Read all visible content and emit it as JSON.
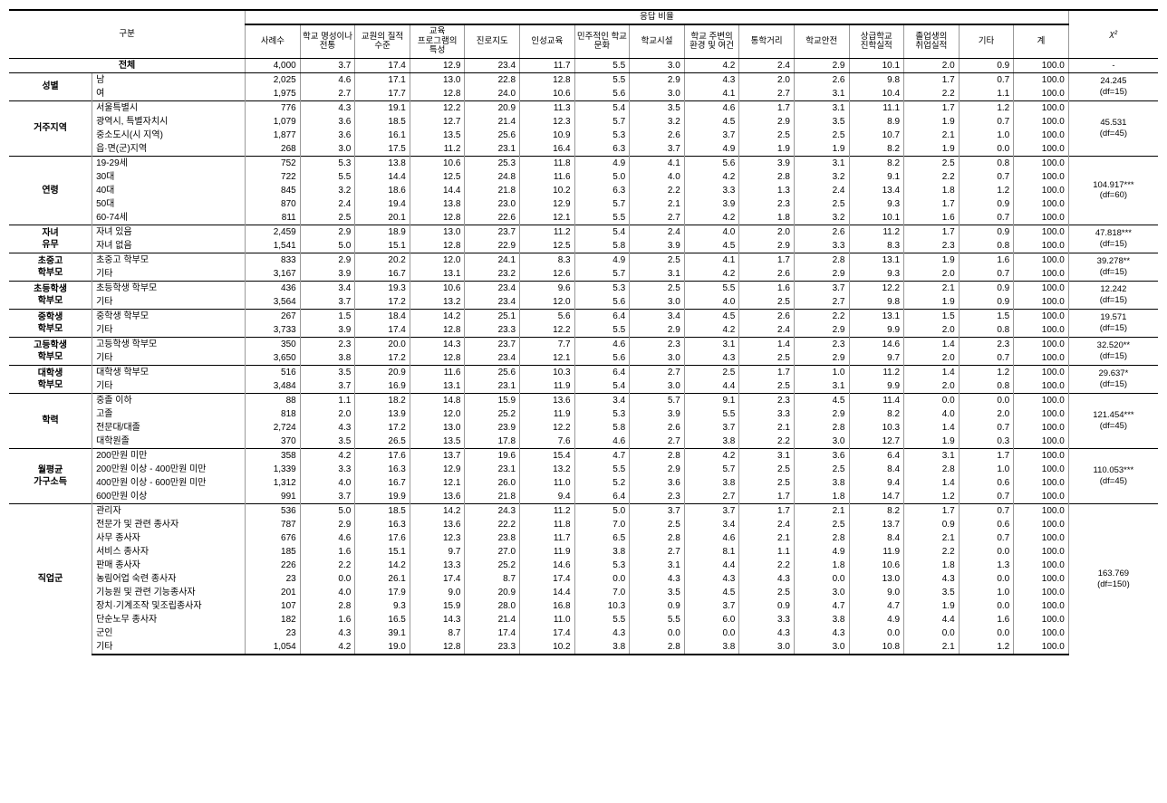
{
  "headers": {
    "cat": "구분",
    "ratio_group": "응답 비율",
    "cols": [
      "사례수",
      "학교 명성이나 전통",
      "교원의 질적 수준",
      "교육 프로그램의 특성",
      "진로지도",
      "인성교육",
      "민주적인 학교 문화",
      "학교시설",
      "학교 주변의 환경 및 여건",
      "통학거리",
      "학교안전",
      "상급학교 진학실적",
      "졸업생의 취업실적",
      "기타",
      "계"
    ],
    "chi": "χ²"
  },
  "total": {
    "label": "전체",
    "cells": [
      "4,000",
      "3.7",
      "17.4",
      "12.9",
      "23.4",
      "11.7",
      "5.5",
      "3.0",
      "4.2",
      "2.4",
      "2.9",
      "10.1",
      "2.0",
      "0.9",
      "100.0"
    ],
    "chi": "-"
  },
  "groups": [
    {
      "name": "성별",
      "chi": "24.245\n(df=15)",
      "rows": [
        {
          "label": "남",
          "cells": [
            "2,025",
            "4.6",
            "17.1",
            "13.0",
            "22.8",
            "12.8",
            "5.5",
            "2.9",
            "4.3",
            "2.0",
            "2.6",
            "9.8",
            "1.7",
            "0.7",
            "100.0"
          ]
        },
        {
          "label": "여",
          "cells": [
            "1,975",
            "2.7",
            "17.7",
            "12.8",
            "24.0",
            "10.6",
            "5.6",
            "3.0",
            "4.1",
            "2.7",
            "3.1",
            "10.4",
            "2.2",
            "1.1",
            "100.0"
          ]
        }
      ]
    },
    {
      "name": "거주지역",
      "chi": "45.531\n(df=45)",
      "rows": [
        {
          "label": "서울특별시",
          "cells": [
            "776",
            "4.3",
            "19.1",
            "12.2",
            "20.9",
            "11.3",
            "5.4",
            "3.5",
            "4.6",
            "1.7",
            "3.1",
            "11.1",
            "1.7",
            "1.2",
            "100.0"
          ]
        },
        {
          "label": "광역시, 특별자치시",
          "cells": [
            "1,079",
            "3.6",
            "18.5",
            "12.7",
            "21.4",
            "12.3",
            "5.7",
            "3.2",
            "4.5",
            "2.9",
            "3.5",
            "8.9",
            "1.9",
            "0.7",
            "100.0"
          ]
        },
        {
          "label": "중소도시(시 지역)",
          "cells": [
            "1,877",
            "3.6",
            "16.1",
            "13.5",
            "25.6",
            "10.9",
            "5.3",
            "2.6",
            "3.7",
            "2.5",
            "2.5",
            "10.7",
            "2.1",
            "1.0",
            "100.0"
          ]
        },
        {
          "label": "읍·면(군)지역",
          "cells": [
            "268",
            "3.0",
            "17.5",
            "11.2",
            "23.1",
            "16.4",
            "6.3",
            "3.7",
            "4.9",
            "1.9",
            "1.9",
            "8.2",
            "1.9",
            "0.0",
            "100.0"
          ]
        }
      ]
    },
    {
      "name": "연령",
      "chi": "104.917***\n(df=60)",
      "rows": [
        {
          "label": "19-29세",
          "cells": [
            "752",
            "5.3",
            "13.8",
            "10.6",
            "25.3",
            "11.8",
            "4.9",
            "4.1",
            "5.6",
            "3.9",
            "3.1",
            "8.2",
            "2.5",
            "0.8",
            "100.0"
          ]
        },
        {
          "label": "30대",
          "cells": [
            "722",
            "5.5",
            "14.4",
            "12.5",
            "24.8",
            "11.6",
            "5.0",
            "4.0",
            "4.2",
            "2.8",
            "3.2",
            "9.1",
            "2.2",
            "0.7",
            "100.0"
          ]
        },
        {
          "label": "40대",
          "cells": [
            "845",
            "3.2",
            "18.6",
            "14.4",
            "21.8",
            "10.2",
            "6.3",
            "2.2",
            "3.3",
            "1.3",
            "2.4",
            "13.4",
            "1.8",
            "1.2",
            "100.0"
          ]
        },
        {
          "label": "50대",
          "cells": [
            "870",
            "2.4",
            "19.4",
            "13.8",
            "23.0",
            "12.9",
            "5.7",
            "2.1",
            "3.9",
            "2.3",
            "2.5",
            "9.3",
            "1.7",
            "0.9",
            "100.0"
          ]
        },
        {
          "label": "60-74세",
          "cells": [
            "811",
            "2.5",
            "20.1",
            "12.8",
            "22.6",
            "12.1",
            "5.5",
            "2.7",
            "4.2",
            "1.8",
            "3.2",
            "10.1",
            "1.6",
            "0.7",
            "100.0"
          ]
        }
      ]
    },
    {
      "name": "자녀\n유무",
      "chi": "47.818***\n(df=15)",
      "rows": [
        {
          "label": "자녀 있음",
          "cells": [
            "2,459",
            "2.9",
            "18.9",
            "13.0",
            "23.7",
            "11.2",
            "5.4",
            "2.4",
            "4.0",
            "2.0",
            "2.6",
            "11.2",
            "1.7",
            "0.9",
            "100.0"
          ]
        },
        {
          "label": "자녀 없음",
          "cells": [
            "1,541",
            "5.0",
            "15.1",
            "12.8",
            "22.9",
            "12.5",
            "5.8",
            "3.9",
            "4.5",
            "2.9",
            "3.3",
            "8.3",
            "2.3",
            "0.8",
            "100.0"
          ]
        }
      ]
    },
    {
      "name": "초중고\n학부모",
      "chi": "39.278**\n(df=15)",
      "rows": [
        {
          "label": "초중고 학부모",
          "cells": [
            "833",
            "2.9",
            "20.2",
            "12.0",
            "24.1",
            "8.3",
            "4.9",
            "2.5",
            "4.1",
            "1.7",
            "2.8",
            "13.1",
            "1.9",
            "1.6",
            "100.0"
          ]
        },
        {
          "label": "기타",
          "cells": [
            "3,167",
            "3.9",
            "16.7",
            "13.1",
            "23.2",
            "12.6",
            "5.7",
            "3.1",
            "4.2",
            "2.6",
            "2.9",
            "9.3",
            "2.0",
            "0.7",
            "100.0"
          ]
        }
      ]
    },
    {
      "name": "초등학생\n학부모",
      "chi": "12.242\n(df=15)",
      "rows": [
        {
          "label": "초등학생 학부모",
          "cells": [
            "436",
            "3.4",
            "19.3",
            "10.6",
            "23.4",
            "9.6",
            "5.3",
            "2.5",
            "5.5",
            "1.6",
            "3.7",
            "12.2",
            "2.1",
            "0.9",
            "100.0"
          ]
        },
        {
          "label": "기타",
          "cells": [
            "3,564",
            "3.7",
            "17.2",
            "13.2",
            "23.4",
            "12.0",
            "5.6",
            "3.0",
            "4.0",
            "2.5",
            "2.7",
            "9.8",
            "1.9",
            "0.9",
            "100.0"
          ]
        }
      ]
    },
    {
      "name": "중학생\n학부모",
      "chi": "19.571\n(df=15)",
      "rows": [
        {
          "label": "중학생 학부모",
          "cells": [
            "267",
            "1.5",
            "18.4",
            "14.2",
            "25.1",
            "5.6",
            "6.4",
            "3.4",
            "4.5",
            "2.6",
            "2.2",
            "13.1",
            "1.5",
            "1.5",
            "100.0"
          ]
        },
        {
          "label": "기타",
          "cells": [
            "3,733",
            "3.9",
            "17.4",
            "12.8",
            "23.3",
            "12.2",
            "5.5",
            "2.9",
            "4.2",
            "2.4",
            "2.9",
            "9.9",
            "2.0",
            "0.8",
            "100.0"
          ]
        }
      ]
    },
    {
      "name": "고등학생\n학부모",
      "chi": "32.520**\n(df=15)",
      "rows": [
        {
          "label": "고등학생 학부모",
          "cells": [
            "350",
            "2.3",
            "20.0",
            "14.3",
            "23.7",
            "7.7",
            "4.6",
            "2.3",
            "3.1",
            "1.4",
            "2.3",
            "14.6",
            "1.4",
            "2.3",
            "100.0"
          ]
        },
        {
          "label": "기타",
          "cells": [
            "3,650",
            "3.8",
            "17.2",
            "12.8",
            "23.4",
            "12.1",
            "5.6",
            "3.0",
            "4.3",
            "2.5",
            "2.9",
            "9.7",
            "2.0",
            "0.7",
            "100.0"
          ]
        }
      ]
    },
    {
      "name": "대학생\n학부모",
      "chi": "29.637*\n(df=15)",
      "rows": [
        {
          "label": "대학생 학부모",
          "cells": [
            "516",
            "3.5",
            "20.9",
            "11.6",
            "25.6",
            "10.3",
            "6.4",
            "2.7",
            "2.5",
            "1.7",
            "1.0",
            "11.2",
            "1.4",
            "1.2",
            "100.0"
          ]
        },
        {
          "label": "기타",
          "cells": [
            "3,484",
            "3.7",
            "16.9",
            "13.1",
            "23.1",
            "11.9",
            "5.4",
            "3.0",
            "4.4",
            "2.5",
            "3.1",
            "9.9",
            "2.0",
            "0.8",
            "100.0"
          ]
        }
      ]
    },
    {
      "name": "학력",
      "chi": "121.454***\n(df=45)",
      "rows": [
        {
          "label": "중졸 이하",
          "cells": [
            "88",
            "1.1",
            "18.2",
            "14.8",
            "15.9",
            "13.6",
            "3.4",
            "5.7",
            "9.1",
            "2.3",
            "4.5",
            "11.4",
            "0.0",
            "0.0",
            "100.0"
          ]
        },
        {
          "label": "고졸",
          "cells": [
            "818",
            "2.0",
            "13.9",
            "12.0",
            "25.2",
            "11.9",
            "5.3",
            "3.9",
            "5.5",
            "3.3",
            "2.9",
            "8.2",
            "4.0",
            "2.0",
            "100.0"
          ]
        },
        {
          "label": "전문대/대졸",
          "cells": [
            "2,724",
            "4.3",
            "17.2",
            "13.0",
            "23.9",
            "12.2",
            "5.8",
            "2.6",
            "3.7",
            "2.1",
            "2.8",
            "10.3",
            "1.4",
            "0.7",
            "100.0"
          ]
        },
        {
          "label": "대학원졸",
          "cells": [
            "370",
            "3.5",
            "26.5",
            "13.5",
            "17.8",
            "7.6",
            "4.6",
            "2.7",
            "3.8",
            "2.2",
            "3.0",
            "12.7",
            "1.9",
            "0.3",
            "100.0"
          ]
        }
      ]
    },
    {
      "name": "월평균\n가구소득",
      "chi": "110.053***\n(df=45)",
      "rows": [
        {
          "label": "200만원 미만",
          "cells": [
            "358",
            "4.2",
            "17.6",
            "13.7",
            "19.6",
            "15.4",
            "4.7",
            "2.8",
            "4.2",
            "3.1",
            "3.6",
            "6.4",
            "3.1",
            "1.7",
            "100.0"
          ]
        },
        {
          "label": "200만원 이상 - 400만원 미만",
          "cells": [
            "1,339",
            "3.3",
            "16.3",
            "12.9",
            "23.1",
            "13.2",
            "5.5",
            "2.9",
            "5.7",
            "2.5",
            "2.5",
            "8.4",
            "2.8",
            "1.0",
            "100.0"
          ]
        },
        {
          "label": "400만원 이상 - 600만원 미만",
          "cells": [
            "1,312",
            "4.0",
            "16.7",
            "12.1",
            "26.0",
            "11.0",
            "5.2",
            "3.6",
            "3.8",
            "2.5",
            "3.8",
            "9.4",
            "1.4",
            "0.6",
            "100.0"
          ]
        },
        {
          "label": "600만원 이상",
          "cells": [
            "991",
            "3.7",
            "19.9",
            "13.6",
            "21.8",
            "9.4",
            "6.4",
            "2.3",
            "2.7",
            "1.7",
            "1.8",
            "14.7",
            "1.2",
            "0.7",
            "100.0"
          ]
        }
      ]
    },
    {
      "name": "직업군",
      "chi": "163.769\n(df=150)",
      "rows": [
        {
          "label": "관리자",
          "cells": [
            "536",
            "5.0",
            "18.5",
            "14.2",
            "24.3",
            "11.2",
            "5.0",
            "3.7",
            "3.7",
            "1.7",
            "2.1",
            "8.2",
            "1.7",
            "0.7",
            "100.0"
          ]
        },
        {
          "label": "전문가 및 관련 종사자",
          "cells": [
            "787",
            "2.9",
            "16.3",
            "13.6",
            "22.2",
            "11.8",
            "7.0",
            "2.5",
            "3.4",
            "2.4",
            "2.5",
            "13.7",
            "0.9",
            "0.6",
            "100.0"
          ]
        },
        {
          "label": "사무 종사자",
          "cells": [
            "676",
            "4.6",
            "17.6",
            "12.3",
            "23.8",
            "11.7",
            "6.5",
            "2.8",
            "4.6",
            "2.1",
            "2.8",
            "8.4",
            "2.1",
            "0.7",
            "100.0"
          ]
        },
        {
          "label": "서비스 종사자",
          "cells": [
            "185",
            "1.6",
            "15.1",
            "9.7",
            "27.0",
            "11.9",
            "3.8",
            "2.7",
            "8.1",
            "1.1",
            "4.9",
            "11.9",
            "2.2",
            "0.0",
            "100.0"
          ]
        },
        {
          "label": "판매 종사자",
          "cells": [
            "226",
            "2.2",
            "14.2",
            "13.3",
            "25.2",
            "14.6",
            "5.3",
            "3.1",
            "4.4",
            "2.2",
            "1.8",
            "10.6",
            "1.8",
            "1.3",
            "100.0"
          ]
        },
        {
          "label": "농림어업 숙련 종사자",
          "cells": [
            "23",
            "0.0",
            "26.1",
            "17.4",
            "8.7",
            "17.4",
            "0.0",
            "4.3",
            "4.3",
            "4.3",
            "0.0",
            "13.0",
            "4.3",
            "0.0",
            "100.0"
          ]
        },
        {
          "label": "기능원 및 관련 기능종사자",
          "cells": [
            "201",
            "4.0",
            "17.9",
            "9.0",
            "20.9",
            "14.4",
            "7.0",
            "3.5",
            "4.5",
            "2.5",
            "3.0",
            "9.0",
            "3.5",
            "1.0",
            "100.0"
          ]
        },
        {
          "label": "장치·기계조작 및조립종사자",
          "cells": [
            "107",
            "2.8",
            "9.3",
            "15.9",
            "28.0",
            "16.8",
            "10.3",
            "0.9",
            "3.7",
            "0.9",
            "4.7",
            "4.7",
            "1.9",
            "0.0",
            "100.0"
          ]
        },
        {
          "label": "단순노무 종사자",
          "cells": [
            "182",
            "1.6",
            "16.5",
            "14.3",
            "21.4",
            "11.0",
            "5.5",
            "5.5",
            "6.0",
            "3.3",
            "3.8",
            "4.9",
            "4.4",
            "1.6",
            "100.0"
          ]
        },
        {
          "label": "군인",
          "cells": [
            "23",
            "4.3",
            "39.1",
            "8.7",
            "17.4",
            "17.4",
            "4.3",
            "0.0",
            "0.0",
            "4.3",
            "4.3",
            "0.0",
            "0.0",
            "0.0",
            "100.0"
          ]
        },
        {
          "label": "기타",
          "cells": [
            "1,054",
            "4.2",
            "19.0",
            "12.8",
            "23.3",
            "10.2",
            "3.8",
            "2.8",
            "3.8",
            "3.0",
            "3.0",
            "10.8",
            "2.1",
            "1.2",
            "100.0"
          ]
        }
      ]
    }
  ],
  "colwidths": {
    "cat": "6.5%",
    "label": "12%",
    "num": "4.3%",
    "chi": "7%"
  }
}
